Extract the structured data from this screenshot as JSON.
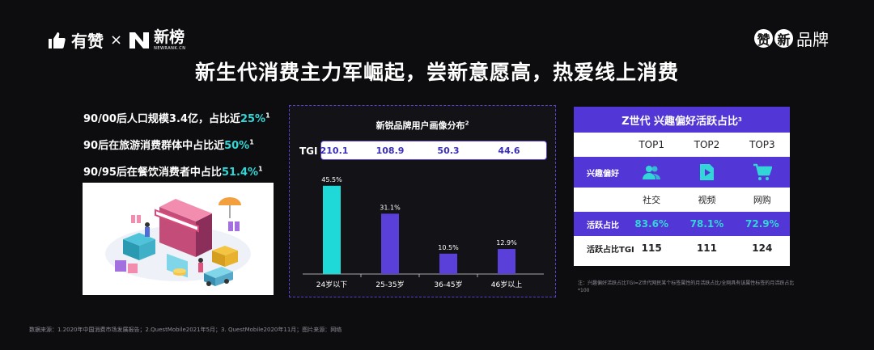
{
  "header": {
    "logo_left_text": "有赞",
    "logo_times": "×",
    "logo_newrank_cn": "新榜",
    "logo_newrank_en": "NEWRANK.CN",
    "logo_right_circle_1": "赞",
    "logo_right_circle_2": "新",
    "logo_right_text": "品牌",
    "headline": "新生代消费主力军崛起，尝新意愿高，热爱线上消费"
  },
  "stats": [
    {
      "prefix": "90/00后人口规模3.4亿，占比近",
      "value": "25%",
      "sup": "1"
    },
    {
      "prefix": "90后在旅游消费群体中占比近",
      "value": "50%",
      "sup": "1"
    },
    {
      "prefix": "90/95后在餐饮消费者中占比",
      "value": "51.4%",
      "sup": "1"
    }
  ],
  "chart": {
    "title": "新锐品牌用户画像分布",
    "title_sup": "2",
    "tgi_label": "TGI",
    "tgi_values": [
      "210.1",
      "108.9",
      "50.3",
      "44.6"
    ]
  },
  "chart_data": {
    "type": "bar",
    "title": "新锐品牌用户画像分布",
    "categories": [
      "24岁以下",
      "25-35岁",
      "36-45岁",
      "46岁以上"
    ],
    "values": [
      45.5,
      31.1,
      10.5,
      12.9
    ],
    "value_labels": [
      "45.5%",
      "31.1%",
      "10.5%",
      "12.9%"
    ],
    "ylim": [
      0,
      50
    ],
    "colors": [
      "#1fd8d8",
      "#5a3fd9",
      "#5a3fd9",
      "#5a3fd9"
    ],
    "grid": false
  },
  "table": {
    "title": "Z世代 兴趣偏好活跃占比",
    "title_sup": "3",
    "columns": [
      "TOP1",
      "TOP2",
      "TOP3"
    ],
    "interest_label": "兴趣偏好",
    "icons": [
      "people-icon",
      "video-play-icon",
      "shopping-cart-icon"
    ],
    "names": [
      "社交",
      "视频",
      "网购"
    ],
    "active_label": "活跃占比",
    "active_values": [
      "83.6%",
      "78.1%",
      "72.9%"
    ],
    "tgi_label": "活跃占比TGI",
    "tgi_values": [
      "115",
      "111",
      "124"
    ]
  },
  "note": "注：兴趣偏好活跃占比TGI=Z世代网民某个标签属性的月活跃占比/全网具有该属性标签的月活跃占比*100",
  "footer": "数据来源：1.2020年中国消费市场发展报告；2.QuestMobile2021年5月；3. QuestMobile2020年11月；图片来源：网络",
  "colors": {
    "accent_cyan": "#33d6d6",
    "accent_purple": "#5236d6",
    "background": "#0d0d10"
  }
}
